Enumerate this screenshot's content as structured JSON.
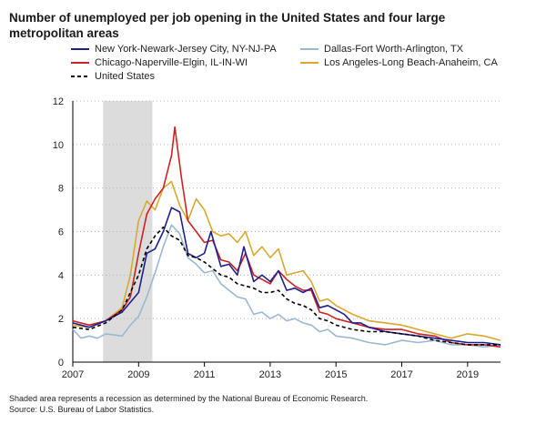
{
  "title": "Number of unemployed per job opening in the United States and four large metropolitan areas",
  "footnote": {
    "line1": "Shaded area represents a recession as determined by the National Bureau of Economic Research.",
    "line2": "Source: U.S. Bureau of Labor Statistics."
  },
  "chart_data": {
    "type": "line",
    "title": "Number of unemployed per job opening in the United States and four large metropolitan areas",
    "xlabel": "",
    "ylabel": "",
    "xlim": [
      2007,
      2020
    ],
    "ylim": [
      0,
      12
    ],
    "xticks": [
      "2007",
      "2009",
      "2011",
      "2013",
      "2015",
      "2017",
      "2019"
    ],
    "yticks": [
      "0",
      "2",
      "4",
      "6",
      "8",
      "10",
      "12"
    ],
    "grid": "horizontal dotted",
    "legend_position": "top",
    "recession_shading": {
      "start": 2007.92,
      "end": 2009.42
    },
    "series": [
      {
        "name": "New York-Newark-Jersey City, NY-NJ-PA",
        "color": "#1f1f8f",
        "style": "solid",
        "points": [
          [
            2007.0,
            1.8
          ],
          [
            2007.5,
            1.6
          ],
          [
            2008.0,
            1.9
          ],
          [
            2008.5,
            2.3
          ],
          [
            2009.0,
            3.2
          ],
          [
            2009.25,
            5.0
          ],
          [
            2009.5,
            5.2
          ],
          [
            2009.75,
            6.0
          ],
          [
            2010.0,
            7.1
          ],
          [
            2010.25,
            6.9
          ],
          [
            2010.5,
            5.0
          ],
          [
            2010.75,
            4.8
          ],
          [
            2011.0,
            5.0
          ],
          [
            2011.2,
            6.0
          ],
          [
            2011.5,
            4.4
          ],
          [
            2011.75,
            4.5
          ],
          [
            2012.0,
            4.0
          ],
          [
            2012.2,
            5.3
          ],
          [
            2012.5,
            3.7
          ],
          [
            2012.75,
            4.0
          ],
          [
            2013.0,
            3.7
          ],
          [
            2013.25,
            4.2
          ],
          [
            2013.5,
            3.3
          ],
          [
            2013.75,
            3.4
          ],
          [
            2014.0,
            3.2
          ],
          [
            2014.25,
            3.4
          ],
          [
            2014.5,
            2.5
          ],
          [
            2014.75,
            2.6
          ],
          [
            2015.0,
            2.4
          ],
          [
            2015.25,
            2.2
          ],
          [
            2015.5,
            1.8
          ],
          [
            2015.75,
            1.8
          ],
          [
            2016.0,
            1.6
          ],
          [
            2016.5,
            1.4
          ],
          [
            2017.0,
            1.3
          ],
          [
            2017.5,
            1.2
          ],
          [
            2018.0,
            1.1
          ],
          [
            2018.5,
            1.0
          ],
          [
            2019.0,
            0.9
          ],
          [
            2019.5,
            0.9
          ],
          [
            2020.0,
            0.8
          ]
        ]
      },
      {
        "name": "Chicago-Naperville-Elgin, IL-IN-WI",
        "color": "#cc2222",
        "style": "solid",
        "points": [
          [
            2007.0,
            1.9
          ],
          [
            2007.5,
            1.7
          ],
          [
            2008.0,
            1.9
          ],
          [
            2008.5,
            2.4
          ],
          [
            2008.75,
            3.0
          ],
          [
            2009.0,
            5.0
          ],
          [
            2009.25,
            6.8
          ],
          [
            2009.5,
            7.5
          ],
          [
            2009.75,
            8.0
          ],
          [
            2010.0,
            9.5
          ],
          [
            2010.1,
            10.8
          ],
          [
            2010.3,
            8.5
          ],
          [
            2010.5,
            6.5
          ],
          [
            2010.75,
            6.0
          ],
          [
            2011.0,
            5.5
          ],
          [
            2011.25,
            5.6
          ],
          [
            2011.5,
            4.7
          ],
          [
            2011.75,
            4.6
          ],
          [
            2012.0,
            4.2
          ],
          [
            2012.25,
            5.0
          ],
          [
            2012.5,
            4.0
          ],
          [
            2012.75,
            3.8
          ],
          [
            2013.0,
            3.6
          ],
          [
            2013.25,
            4.2
          ],
          [
            2013.5,
            3.8
          ],
          [
            2013.75,
            3.5
          ],
          [
            2014.0,
            3.3
          ],
          [
            2014.25,
            3.3
          ],
          [
            2014.5,
            2.3
          ],
          [
            2014.75,
            2.2
          ],
          [
            2015.0,
            2.0
          ],
          [
            2015.5,
            1.8
          ],
          [
            2016.0,
            1.6
          ],
          [
            2016.5,
            1.5
          ],
          [
            2017.0,
            1.5
          ],
          [
            2017.5,
            1.3
          ],
          [
            2018.0,
            1.2
          ],
          [
            2018.5,
            0.9
          ],
          [
            2019.0,
            0.8
          ],
          [
            2019.5,
            0.8
          ],
          [
            2020.0,
            0.7
          ]
        ]
      },
      {
        "name": "Dallas-Fort Worth-Arlington, TX",
        "color": "#9bb8d3",
        "style": "solid",
        "points": [
          [
            2007.0,
            1.5
          ],
          [
            2007.25,
            1.1
          ],
          [
            2007.5,
            1.2
          ],
          [
            2007.75,
            1.1
          ],
          [
            2008.0,
            1.3
          ],
          [
            2008.5,
            1.2
          ],
          [
            2008.75,
            1.7
          ],
          [
            2009.0,
            2.1
          ],
          [
            2009.25,
            3.0
          ],
          [
            2009.5,
            4.1
          ],
          [
            2009.75,
            5.3
          ],
          [
            2010.0,
            6.3
          ],
          [
            2010.25,
            5.9
          ],
          [
            2010.5,
            4.8
          ],
          [
            2010.75,
            4.5
          ],
          [
            2011.0,
            4.1
          ],
          [
            2011.25,
            4.2
          ],
          [
            2011.5,
            3.6
          ],
          [
            2011.75,
            3.3
          ],
          [
            2012.0,
            3.0
          ],
          [
            2012.25,
            2.9
          ],
          [
            2012.5,
            2.2
          ],
          [
            2012.75,
            2.3
          ],
          [
            2013.0,
            2.0
          ],
          [
            2013.25,
            2.2
          ],
          [
            2013.5,
            1.9
          ],
          [
            2013.75,
            2.0
          ],
          [
            2014.0,
            1.8
          ],
          [
            2014.25,
            1.7
          ],
          [
            2014.5,
            1.4
          ],
          [
            2014.75,
            1.5
          ],
          [
            2015.0,
            1.2
          ],
          [
            2015.5,
            1.1
          ],
          [
            2016.0,
            0.9
          ],
          [
            2016.5,
            0.8
          ],
          [
            2017.0,
            1.0
          ],
          [
            2017.5,
            0.9
          ],
          [
            2018.0,
            1.0
          ],
          [
            2018.5,
            0.8
          ],
          [
            2019.0,
            0.8
          ],
          [
            2019.5,
            0.7
          ],
          [
            2020.0,
            0.8
          ]
        ]
      },
      {
        "name": "Los Angeles-Long Beach-Anaheim, CA",
        "color": "#d9a82e",
        "style": "solid",
        "points": [
          [
            2007.0,
            1.7
          ],
          [
            2007.5,
            1.6
          ],
          [
            2008.0,
            1.9
          ],
          [
            2008.5,
            2.5
          ],
          [
            2008.75,
            4.0
          ],
          [
            2009.0,
            6.5
          ],
          [
            2009.25,
            7.4
          ],
          [
            2009.5,
            7.0
          ],
          [
            2009.75,
            8.0
          ],
          [
            2010.0,
            8.3
          ],
          [
            2010.25,
            7.2
          ],
          [
            2010.5,
            6.5
          ],
          [
            2010.75,
            7.5
          ],
          [
            2011.0,
            7.0
          ],
          [
            2011.25,
            6.0
          ],
          [
            2011.5,
            5.8
          ],
          [
            2011.75,
            5.9
          ],
          [
            2012.0,
            5.5
          ],
          [
            2012.25,
            6.0
          ],
          [
            2012.5,
            4.9
          ],
          [
            2012.75,
            5.3
          ],
          [
            2013.0,
            4.8
          ],
          [
            2013.25,
            5.2
          ],
          [
            2013.5,
            4.0
          ],
          [
            2013.75,
            4.1
          ],
          [
            2014.0,
            4.2
          ],
          [
            2014.25,
            3.7
          ],
          [
            2014.5,
            2.8
          ],
          [
            2014.75,
            2.9
          ],
          [
            2015.0,
            2.6
          ],
          [
            2015.5,
            2.2
          ],
          [
            2016.0,
            1.9
          ],
          [
            2016.5,
            1.8
          ],
          [
            2017.0,
            1.7
          ],
          [
            2017.5,
            1.5
          ],
          [
            2018.0,
            1.3
          ],
          [
            2018.5,
            1.1
          ],
          [
            2019.0,
            1.3
          ],
          [
            2019.5,
            1.2
          ],
          [
            2020.0,
            1.0
          ]
        ]
      },
      {
        "name": "United States",
        "color": "#000000",
        "style": "dashed",
        "points": [
          [
            2007.0,
            1.6
          ],
          [
            2007.5,
            1.5
          ],
          [
            2008.0,
            1.8
          ],
          [
            2008.5,
            2.4
          ],
          [
            2009.0,
            4.0
          ],
          [
            2009.25,
            5.2
          ],
          [
            2009.5,
            5.8
          ],
          [
            2009.75,
            6.2
          ],
          [
            2010.0,
            5.8
          ],
          [
            2010.25,
            5.6
          ],
          [
            2010.5,
            4.9
          ],
          [
            2010.75,
            4.8
          ],
          [
            2011.0,
            4.6
          ],
          [
            2011.25,
            4.3
          ],
          [
            2011.5,
            4.0
          ],
          [
            2011.75,
            3.9
          ],
          [
            2012.0,
            3.6
          ],
          [
            2012.25,
            3.5
          ],
          [
            2012.5,
            3.4
          ],
          [
            2012.75,
            3.2
          ],
          [
            2013.0,
            3.2
          ],
          [
            2013.25,
            3.3
          ],
          [
            2013.5,
            2.9
          ],
          [
            2013.75,
            2.7
          ],
          [
            2014.0,
            2.6
          ],
          [
            2014.25,
            2.4
          ],
          [
            2014.5,
            2.0
          ],
          [
            2014.75,
            1.9
          ],
          [
            2015.0,
            1.7
          ],
          [
            2015.5,
            1.5
          ],
          [
            2016.0,
            1.4
          ],
          [
            2016.5,
            1.4
          ],
          [
            2017.0,
            1.3
          ],
          [
            2017.5,
            1.2
          ],
          [
            2018.0,
            1.0
          ],
          [
            2018.5,
            0.9
          ],
          [
            2019.0,
            0.8
          ],
          [
            2019.5,
            0.8
          ],
          [
            2020.0,
            0.8
          ]
        ]
      }
    ]
  }
}
